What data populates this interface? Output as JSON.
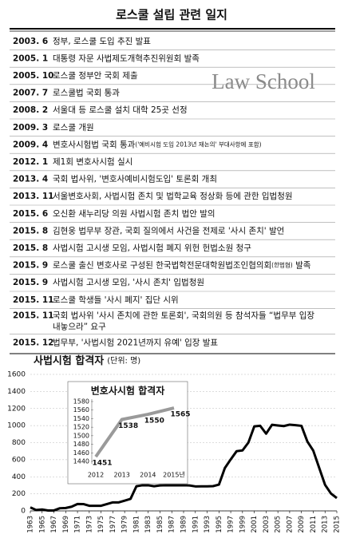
{
  "timeline": {
    "title": "로스쿨 설립 관련 일지",
    "watermark": "Law School",
    "rows": [
      {
        "date": "2003. 6",
        "text": "정부, 로스쿨 도입 추진 발표"
      },
      {
        "date": "2005. 1",
        "text": "대통령 자문 사법제도개혁추진위원회 발족"
      },
      {
        "date": "2005. 10",
        "text": "로스쿨 정부안 국회 제출"
      },
      {
        "date": "2007. 7",
        "text": "로스쿨법 국회 통과"
      },
      {
        "date": "2008. 2",
        "text": "서울대 등 로스쿨 설치 대학 25곳 선정"
      },
      {
        "date": "2009. 3",
        "text": "로스쿨 개원"
      },
      {
        "date": "2009. 4",
        "text": "변호사시험법 국회 통과",
        "note": "('예비시험 도입 2013년 재논의' 부대사항에 포함)"
      },
      {
        "date": "2012. 1",
        "text": "제1회 변호사시험 실시"
      },
      {
        "date": "2013. 4",
        "text": "국회 법사위, '변호사예비시험도입' 토론회 개최"
      },
      {
        "date": "2013. 11",
        "text": "서울변호사회, 사법시험 존치 및 법학교육 정상화 등에 관한 입법청원"
      },
      {
        "date": "2015. 6",
        "text": "오신환 새누리당 의원 사법시험 존치 법안 발의"
      },
      {
        "date": "2015. 8",
        "text": "김현웅 법무부 장관, 국회 질의에서 사건을 전제로 '사시 존치' 발언"
      },
      {
        "date": "2015. 8",
        "text": "사법시험 고시생 모임, 사법시험 폐지 위헌 헌법소원 청구"
      },
      {
        "date": "2015. 9",
        "text": "로스쿨 출신 변호사로 구성된 한국법학전문대학원법조인협의회",
        "note": "(한법협)",
        "tail": " 발족"
      },
      {
        "date": "2015. 9",
        "text": "사법시험 고시생 모임, '사시 존치' 입법청원"
      },
      {
        "date": "2015. 11",
        "text": "로스쿨 학생들 '사시 폐지' 집단 시위"
      },
      {
        "date": "2015. 11",
        "lines": [
          "국회 법사위 '사시 존치에 관한 토론회', 국회의원 등 참석자들 “법무부 입장",
          "내놓으라” 요구"
        ]
      },
      {
        "date": "2015. 12",
        "text": "법무부, '사법시험 2021년까지 유예' 입장 발표"
      }
    ]
  },
  "chart_data": [
    {
      "type": "line",
      "title": "사법시험 합격자",
      "subtitle": "(단위: 명)",
      "color": "#000000",
      "grid": true,
      "x": [
        1963,
        1964,
        1965,
        1966,
        1967,
        1968,
        1969,
        1970,
        1971,
        1972,
        1973,
        1974,
        1975,
        1976,
        1977,
        1978,
        1979,
        1980,
        1981,
        1982,
        1983,
        1984,
        1985,
        1986,
        1987,
        1988,
        1989,
        1990,
        1991,
        1992,
        1993,
        1994,
        1995,
        1996,
        1997,
        1998,
        1999,
        2000,
        2001,
        2002,
        2003,
        2004,
        2005,
        2006,
        2007,
        2008,
        2009,
        2010,
        2011,
        2012,
        2013,
        2014,
        2015
      ],
      "values": [
        41,
        10,
        16,
        5,
        5,
        31,
        34,
        49,
        81,
        80,
        60,
        60,
        60,
        80,
        100,
        100,
        120,
        141,
        289,
        300,
        300,
        289,
        298,
        300,
        300,
        300,
        300,
        298,
        287,
        288,
        288,
        290,
        308,
        502,
        604,
        700,
        709,
        801,
        991,
        998,
        905,
        1009,
        1001,
        994,
        1011,
        1005,
        997,
        814,
        707,
        506,
        306,
        204,
        150
      ],
      "xlim": [
        1963,
        2015
      ],
      "xticks": [
        1963,
        1965,
        1967,
        1969,
        1971,
        1973,
        1975,
        1977,
        1979,
        1981,
        1983,
        1985,
        1987,
        1989,
        1991,
        1993,
        1995,
        1997,
        1999,
        2001,
        2003,
        2005,
        2007,
        2009,
        2011,
        2013,
        2015
      ],
      "ylim": [
        0,
        1600
      ],
      "yticks": [
        0,
        200,
        400,
        600,
        800,
        1000,
        1200,
        1400,
        1600
      ]
    },
    {
      "type": "line",
      "title": "변호사시험 합격자",
      "color": "#9a9a9a",
      "categories": [
        "2012",
        "2013",
        "2014",
        "2015년"
      ],
      "values": [
        1451,
        1538,
        1550,
        1565
      ],
      "ylim": [
        1440,
        1580
      ],
      "yticks": [
        1440,
        1460,
        1480,
        1500,
        1520,
        1540,
        1560,
        1580
      ]
    }
  ]
}
